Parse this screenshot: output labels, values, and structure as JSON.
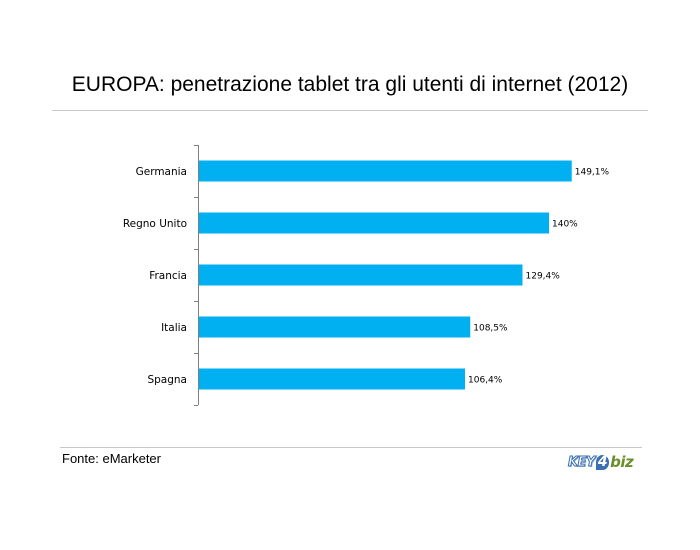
{
  "title": "EUROPA: penetrazione tablet tra gli utenti di internet (2012)",
  "source": "Fonte: eMarketer",
  "logo": "KEY4biz",
  "colors": {
    "bar": "#00B0F0",
    "axis": "#7f7f7f",
    "rule": "#c8c8c8"
  },
  "chart_data": {
    "type": "bar",
    "orientation": "horizontal",
    "categories": [
      "Germania",
      "Regno Unito",
      "Francia",
      "Italia",
      "Spagna"
    ],
    "values": [
      149.1,
      140,
      129.4,
      108.5,
      106.4
    ],
    "value_labels": [
      "149,1%",
      "140%",
      "129,4%",
      "108,5%",
      "106,4%"
    ],
    "xlim": [
      0,
      160
    ],
    "grid": false,
    "legend": "none"
  }
}
